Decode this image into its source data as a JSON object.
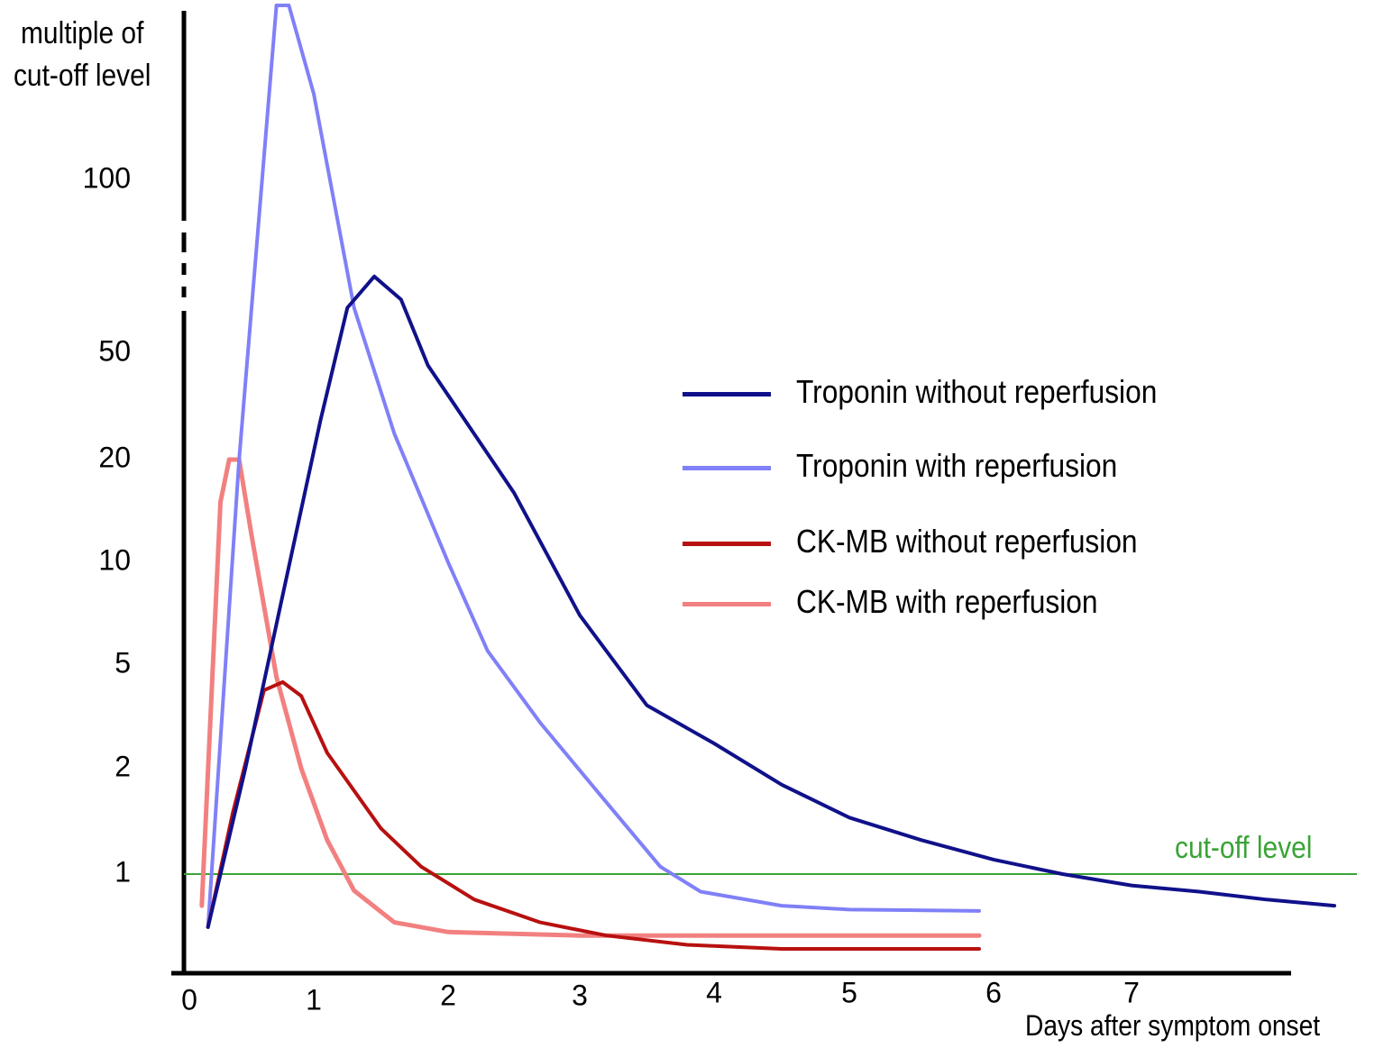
{
  "chart_data": {
    "type": "line",
    "ylabel": "multiple of cut-off level",
    "xlabel": "Days after symptom onset",
    "x_ticks": [
      "0",
      "1",
      "2",
      "3",
      "4",
      "5",
      "6",
      "7"
    ],
    "y_ticks": [
      "100",
      "50",
      "20",
      "10",
      "5",
      "2",
      "1"
    ],
    "y_tick_values": [
      100,
      50,
      20,
      10,
      5,
      2,
      1
    ],
    "y_scale": "log",
    "xlim": [
      0,
      8.5
    ],
    "grid": false,
    "legend_position": "right",
    "reference_line": {
      "label": "cut-off level",
      "y": 1,
      "color": "#3aa336"
    },
    "series": [
      {
        "name": "Troponin without reperfusion",
        "color": "#10118a",
        "points": [
          [
            0.15,
            0.55
          ],
          [
            0.45,
            2
          ],
          [
            0.75,
            8
          ],
          [
            1.05,
            28
          ],
          [
            1.25,
            60
          ],
          [
            1.45,
            68
          ],
          [
            1.65,
            62
          ],
          [
            1.85,
            45
          ],
          [
            2.5,
            16
          ],
          [
            3.0,
            7
          ],
          [
            3.5,
            3.5
          ],
          [
            4.0,
            2.5
          ],
          [
            4.5,
            1.8
          ],
          [
            5.0,
            1.45
          ],
          [
            5.5,
            1.25
          ],
          [
            6.0,
            1.1
          ],
          [
            6.5,
            1.0
          ],
          [
            7.0,
            0.88
          ],
          [
            7.5,
            0.82
          ],
          [
            8.0,
            0.75
          ],
          [
            8.5,
            0.7
          ]
        ]
      },
      {
        "name": "Troponin with reperfusion",
        "color": "#8080f8",
        "points": [
          [
            0.15,
            0.55
          ],
          [
            0.4,
            20
          ],
          [
            0.7,
            170
          ],
          [
            0.8,
            170
          ],
          [
            1.0,
            130
          ],
          [
            1.3,
            60
          ],
          [
            1.6,
            25
          ],
          [
            2.0,
            10
          ],
          [
            2.3,
            5.5
          ],
          [
            2.7,
            3.0
          ],
          [
            3.2,
            1.6
          ],
          [
            3.6,
            1.05
          ],
          [
            3.9,
            0.82
          ],
          [
            4.5,
            0.7
          ],
          [
            5.0,
            0.67
          ],
          [
            5.9,
            0.66
          ]
        ]
      },
      {
        "name": "CK-MB without reperfusion",
        "color": "#b81010",
        "points": [
          [
            0.15,
            0.55
          ],
          [
            0.35,
            1.5
          ],
          [
            0.6,
            4.0
          ],
          [
            0.75,
            4.3
          ],
          [
            0.9,
            3.8
          ],
          [
            1.1,
            2.3
          ],
          [
            1.5,
            1.35
          ],
          [
            1.8,
            1.05
          ],
          [
            2.2,
            0.75
          ],
          [
            2.7,
            0.58
          ],
          [
            3.2,
            0.5
          ],
          [
            3.8,
            0.45
          ],
          [
            4.5,
            0.43
          ],
          [
            5.9,
            0.43
          ]
        ]
      },
      {
        "name": "CK-MB with reperfusion",
        "color": "#f28080",
        "points": [
          [
            0.1,
            0.7
          ],
          [
            0.25,
            15
          ],
          [
            0.32,
            20
          ],
          [
            0.4,
            20
          ],
          [
            0.5,
            12
          ],
          [
            0.7,
            4.5
          ],
          [
            0.9,
            2.0
          ],
          [
            1.1,
            1.25
          ],
          [
            1.3,
            0.83
          ],
          [
            1.6,
            0.58
          ],
          [
            2.0,
            0.52
          ],
          [
            3.0,
            0.5
          ],
          [
            5.9,
            0.5
          ]
        ]
      }
    ]
  }
}
